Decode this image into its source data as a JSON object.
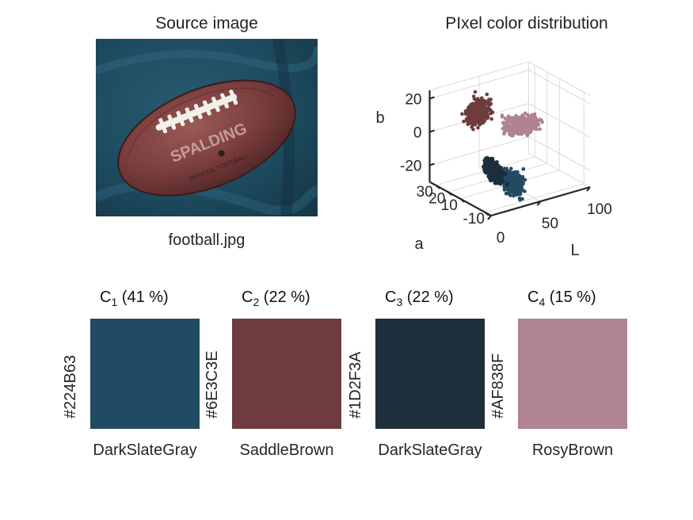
{
  "source_panel": {
    "title": "Source image",
    "filename": "football.jpg",
    "ball_text": "SPALDING",
    "ball_text2": "OFFICIAL FOOTBALL"
  },
  "chart_data": {
    "type": "scatter",
    "title": "PIxel color distribution",
    "xlabel": "L",
    "ylabel": "a",
    "zlabel": "b",
    "x_ticks": [
      "0",
      "50",
      "100"
    ],
    "y_ticks": [
      "-10",
      "10",
      "20",
      "30"
    ],
    "z_ticks": [
      "20",
      "0",
      "-20"
    ],
    "grid": true,
    "series": [
      {
        "color": "#224B63",
        "L_range": [
          15,
          45
        ],
        "a_range": [
          -12,
          -2
        ],
        "b_range": [
          -30,
          -5
        ]
      },
      {
        "color": "#6E3C3E",
        "L_range": [
          15,
          45
        ],
        "a_range": [
          10,
          30
        ],
        "b_range": [
          5,
          20
        ]
      },
      {
        "color": "#1D2F3A",
        "L_range": [
          5,
          25
        ],
        "a_range": [
          -10,
          0
        ],
        "b_range": [
          -20,
          -5
        ]
      },
      {
        "color": "#AF838F",
        "L_range": [
          40,
          90
        ],
        "a_range": [
          5,
          20
        ],
        "b_range": [
          -5,
          10
        ]
      }
    ]
  },
  "clusters": [
    {
      "label": "C",
      "index": "1",
      "percent": " (41 %)",
      "hex": "#224B63",
      "name": "DarkSlateGray",
      "color": "#224B63"
    },
    {
      "label": "C",
      "index": "2",
      "percent": " (22 %)",
      "hex": "#6E3C3E",
      "name": "SaddleBrown",
      "color": "#6E3C3E"
    },
    {
      "label": "C",
      "index": "3",
      "percent": " (22 %)",
      "hex": "#1D2F3A",
      "name": "DarkSlateGray",
      "color": "#1D2F3A"
    },
    {
      "label": "C",
      "index": "4",
      "percent": " (15 %)",
      "hex": "#AF838F",
      "name": "RosyBrown",
      "color": "#AF838F"
    }
  ]
}
